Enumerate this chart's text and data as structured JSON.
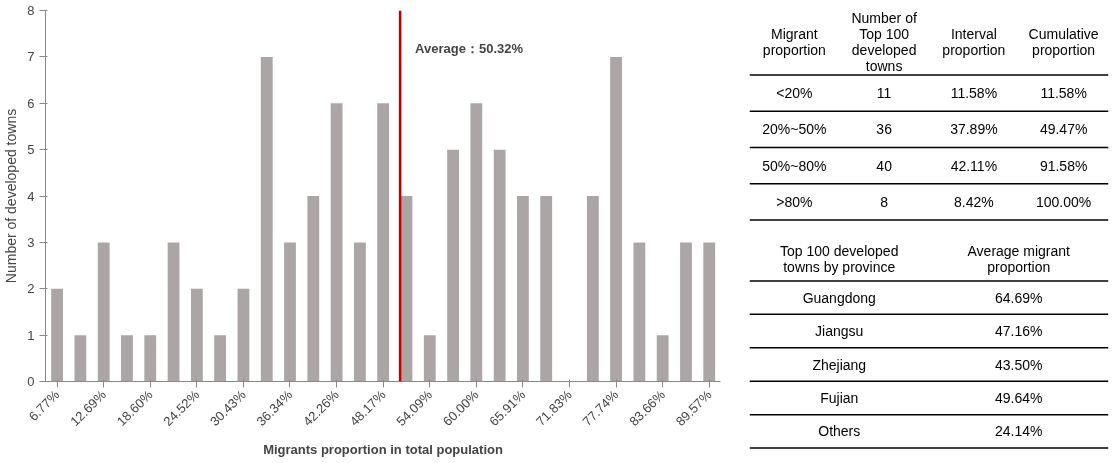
{
  "chart_data": [
    {
      "type": "bar",
      "xlabel": "Migrants proportion in total population",
      "ylabel": "Number of developed towns",
      "x": [
        6.77,
        9.73,
        12.69,
        15.64,
        18.6,
        21.56,
        24.52,
        27.47,
        30.43,
        33.39,
        36.34,
        39.3,
        42.26,
        45.22,
        48.17,
        51.13,
        54.09,
        57.05,
        60.0,
        62.96,
        65.91,
        68.87,
        71.83,
        74.79,
        77.74,
        80.7,
        83.66,
        86.62,
        89.57
      ],
      "values": [
        2,
        1,
        3,
        1,
        1,
        3,
        2,
        1,
        2,
        7,
        3,
        4,
        6,
        3,
        6,
        4,
        1,
        5,
        6,
        5,
        4,
        4,
        0,
        4,
        7,
        3,
        1,
        3,
        3
      ],
      "color": "#aba5a6",
      "xlim": [
        5.3,
        91.0
      ],
      "ylim": [
        0,
        8
      ],
      "yticks": [
        0,
        1,
        2,
        3,
        4,
        5,
        6,
        7,
        8
      ],
      "xticks": [
        {
          "value": 6.77,
          "label": "6.77%"
        },
        {
          "value": 12.69,
          "label": "12.69%"
        },
        {
          "value": 18.6,
          "label": "18.60%"
        },
        {
          "value": 24.52,
          "label": "24.52%"
        },
        {
          "value": 30.43,
          "label": "30.43%"
        },
        {
          "value": 36.34,
          "label": "36.34%"
        },
        {
          "value": 42.26,
          "label": "42.26%"
        },
        {
          "value": 48.17,
          "label": "48.17%"
        },
        {
          "value": 54.09,
          "label": "54.09%"
        },
        {
          "value": 60.0,
          "label": "60.00%"
        },
        {
          "value": 65.91,
          "label": "65.91%"
        },
        {
          "value": 71.83,
          "label": "71.83%"
        },
        {
          "value": 77.74,
          "label": "77.74%"
        },
        {
          "value": 83.66,
          "label": "83.66%"
        },
        {
          "value": 89.57,
          "label": "89.57%"
        }
      ],
      "ref_lines": [
        {
          "axis": "x",
          "value": 50.32,
          "label": "Average：50.32%",
          "color": "#c00000"
        }
      ]
    },
    {
      "type": "other",
      "annotations": [
        "Migrant proportion",
        "Number of Top 100 developed towns",
        "Interval proportion",
        "Cumulative proportion",
        "<20%",
        "11",
        "11.58%",
        "11.58%",
        "20%~50%",
        "36",
        "37.89%",
        "49.47%",
        "50%~80%",
        "40",
        "42.11%",
        "91.58%",
        ">80%",
        "8",
        "8.42%",
        "100.00%"
      ]
    },
    {
      "type": "other",
      "annotations": [
        "Top 100 developed towns by province",
        "Average migrant proportion",
        "Guangdong",
        "64.69%",
        "Jiangsu",
        "47.16%",
        "Zhejiang",
        "43.50%",
        "Fujian",
        "49.64%",
        "Others",
        "24.14%"
      ]
    }
  ]
}
